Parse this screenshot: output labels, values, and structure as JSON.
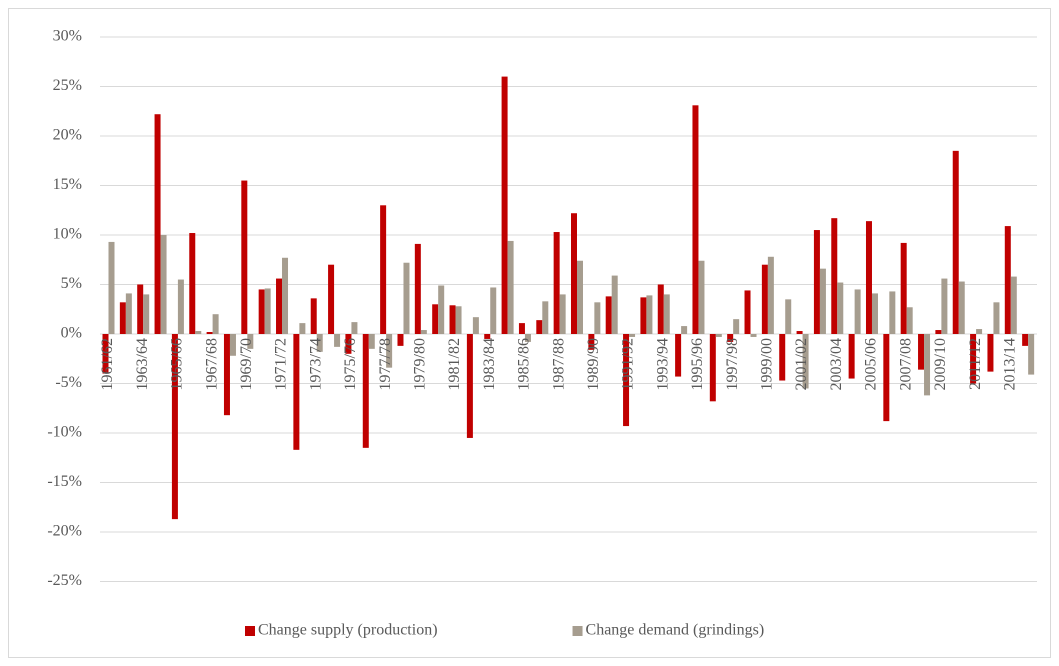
{
  "chart_data": {
    "type": "bar",
    "categories": [
      "1961/62",
      null,
      "1963/64",
      null,
      "1965/66",
      null,
      "1967/68",
      null,
      "1969/70",
      null,
      "1971/72",
      null,
      "1973/74",
      null,
      "1975/76",
      null,
      "1977/78",
      null,
      "1979/80",
      null,
      "1981/82",
      null,
      "1983/84",
      null,
      "1985/86",
      null,
      "1987/88",
      null,
      "1989/90",
      null,
      "1991/92",
      null,
      "1993/94",
      null,
      "1995/96",
      null,
      "1997/98",
      null,
      "1999/00",
      null,
      "2001/02",
      null,
      "2003/04",
      null,
      "2005/06",
      null,
      "2007/08",
      null,
      "2009/10",
      null,
      "2011/12",
      null,
      "2013/14",
      null
    ],
    "series": [
      {
        "name": "Change supply (production)",
        "color": "#c00000",
        "values": [
          -4.0,
          3.2,
          5.0,
          22.2,
          -18.7,
          10.2,
          0.2,
          -8.2,
          15.5,
          4.5,
          5.6,
          -11.7,
          3.6,
          7.0,
          -2.0,
          -11.5,
          13.0,
          -1.2,
          9.1,
          3.0,
          2.9,
          -10.5,
          -0.5,
          26.0,
          1.1,
          1.4,
          10.3,
          12.2,
          -1.6,
          3.8,
          -9.3,
          3.7,
          5.0,
          -4.3,
          23.1,
          -6.8,
          -0.8,
          4.4,
          7.0,
          -4.7,
          0.3,
          10.5,
          11.7,
          -4.5,
          11.4,
          -8.8,
          9.2,
          -3.6,
          0.4,
          18.5,
          -5.0,
          -3.8,
          10.9,
          -1.2
        ]
      },
      {
        "name": "Change demand (grindings)",
        "color": "#a69d8f",
        "values": [
          9.3,
          4.1,
          4.0,
          10.0,
          5.5,
          0.3,
          2.0,
          -2.2,
          -1.5,
          4.6,
          7.7,
          1.1,
          -1.8,
          -1.3,
          1.2,
          -1.5,
          -3.4,
          7.2,
          0.4,
          4.9,
          2.8,
          1.7,
          4.7,
          9.4,
          -0.8,
          3.3,
          4.0,
          7.4,
          3.2,
          5.9,
          -0.3,
          3.9,
          4.0,
          0.8,
          7.4,
          -0.3,
          1.5,
          -0.3,
          7.8,
          3.5,
          -5.5,
          6.6,
          5.2,
          4.5,
          4.1,
          4.3,
          2.7,
          -6.2,
          5.6,
          5.3,
          0.5,
          3.2,
          5.8,
          -4.1
        ]
      }
    ],
    "ylim": [
      -25,
      30
    ],
    "yticks": [
      {
        "value": -25,
        "label": "-25%"
      },
      {
        "value": -20,
        "label": "-20%"
      },
      {
        "value": -15,
        "label": "-15%"
      },
      {
        "value": -10,
        "label": "-10%"
      },
      {
        "value": -5,
        "label": "-5%"
      },
      {
        "value": 0,
        "label": "0%"
      },
      {
        "value": 5,
        "label": "5%"
      },
      {
        "value": 10,
        "label": "10%"
      },
      {
        "value": 15,
        "label": "15%"
      },
      {
        "value": 20,
        "label": "20%"
      },
      {
        "value": 25,
        "label": "25%"
      },
      {
        "value": 30,
        "label": "30%"
      }
    ],
    "grid": true,
    "legend": "bottom"
  }
}
